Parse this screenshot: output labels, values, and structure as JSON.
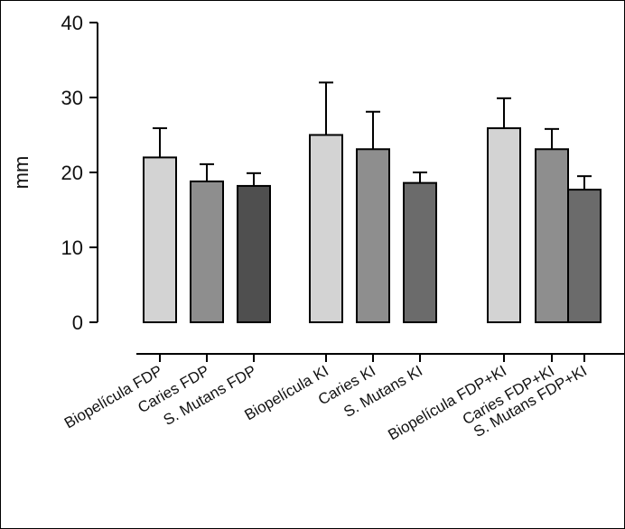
{
  "chart_data": {
    "type": "bar",
    "title": "",
    "xlabel": "",
    "ylabel": "mm",
    "ylim": [
      0,
      40
    ],
    "yticks": [
      0,
      10,
      20,
      30,
      40
    ],
    "grid": false,
    "legend": "none",
    "categories": [
      "Biopelícula FDP",
      "Caries FDP",
      "S. Mutans FDP",
      "Biopelícula KI",
      "Caries KI",
      "S. Mutans KI",
      "Biopelícula FDP+KI",
      "Caries FDP+KI",
      "S. Mutans FDP+KI"
    ],
    "groups": [
      {
        "categories": [
          0,
          1,
          2
        ]
      },
      {
        "categories": [
          3,
          4,
          5
        ]
      },
      {
        "categories": [
          6,
          7,
          8
        ]
      }
    ],
    "values": [
      22,
      18.8,
      18.2,
      25,
      23.1,
      18.6,
      25.9,
      23.1,
      17.7
    ],
    "error_upper": [
      3.9,
      2.3,
      1.7,
      7,
      5,
      1.4,
      4,
      2.7,
      1.8
    ],
    "colors": [
      "#d3d3d3",
      "#8e8e8e",
      "#4f4f4f",
      "#d3d3d3",
      "#8e8e8e",
      "#6b6b6b",
      "#d3d3d3",
      "#8e8e8e",
      "#6b6b6b"
    ]
  }
}
